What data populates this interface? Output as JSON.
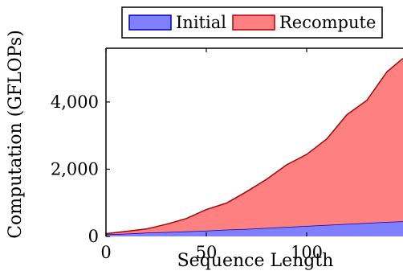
{
  "chart_data": {
    "type": "area",
    "stacked": true,
    "title": "",
    "xlabel": "Sequence Length",
    "ylabel": "Computation (GFLOPs)",
    "xlim": [
      0,
      148
    ],
    "ylim": [
      0,
      5600
    ],
    "x_ticks": [
      0,
      50,
      100
    ],
    "x_tick_labels": [
      "0",
      "50",
      "100"
    ],
    "y_ticks": [
      0,
      2000,
      4000
    ],
    "y_tick_labels": [
      "0",
      "2,000",
      "4,000"
    ],
    "legend": {
      "placement": "top",
      "columns": 2
    },
    "x": [
      0,
      10,
      20,
      30,
      40,
      50,
      60,
      70,
      80,
      90,
      100,
      110,
      120,
      130,
      140,
      148
    ],
    "series": [
      {
        "name": "Initial",
        "color": "#8080ff",
        "edge_color": "#0000b0",
        "values": [
          60,
          80,
          110,
          130,
          150,
          170,
          200,
          220,
          250,
          280,
          310,
          340,
          370,
          400,
          430,
          450
        ]
      },
      {
        "name": "Recompute",
        "color": "#ff8080",
        "edge_color": "#b00000",
        "values": [
          20,
          70,
          110,
          230,
          380,
          630,
          790,
          1110,
          1450,
          1850,
          2130,
          2560,
          3250,
          3650,
          4470,
          4850
        ]
      }
    ]
  }
}
